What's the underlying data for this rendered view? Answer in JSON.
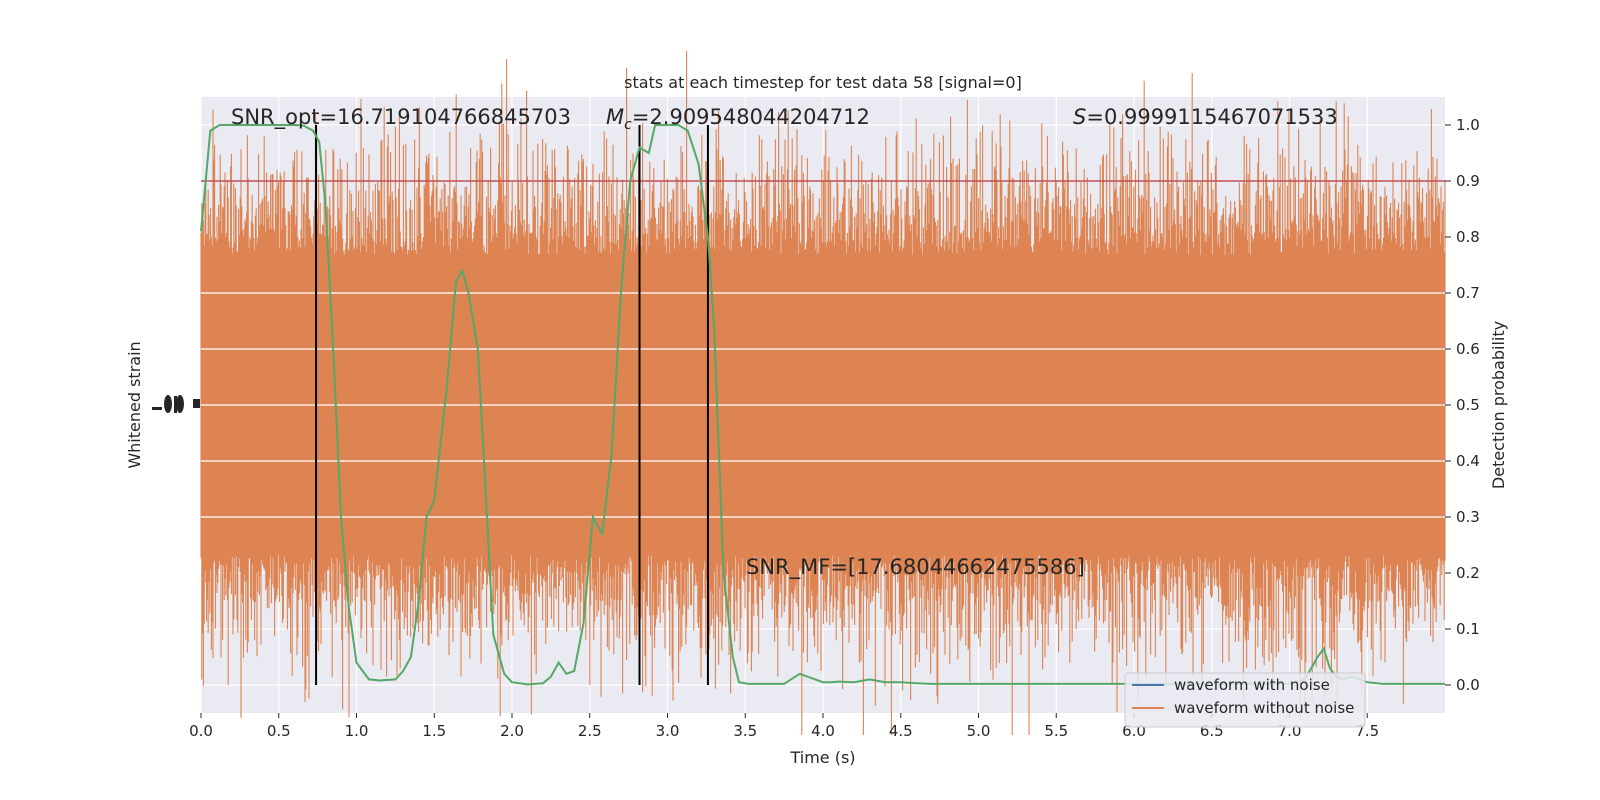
{
  "chart_data": {
    "type": "line",
    "title": "stats at each timestep for test data 58 [signal=0]",
    "xlabel": "Time (s)",
    "ylabel_left": "Whitened strain",
    "ylabel_right": "Detection probability",
    "xlim": [
      0,
      8
    ],
    "ylim_right": [
      -0.05,
      1.05
    ],
    "x_ticks": [
      "0.0",
      "0.5",
      "1.0",
      "1.5",
      "2.0",
      "2.5",
      "3.0",
      "3.5",
      "4.0",
      "4.5",
      "5.0",
      "5.5",
      "6.0",
      "6.5",
      "7.0",
      "7.5"
    ],
    "y_right_ticks": [
      "0.0",
      "0.1",
      "0.2",
      "0.3",
      "0.4",
      "0.5",
      "0.6",
      "0.7",
      "0.8",
      "0.9",
      "1.0"
    ],
    "grid": true,
    "legend_placement": "lower-right",
    "annotations": {
      "snr_opt": "SNR_opt=16.719104766845703",
      "mc_symbol": "M",
      "mc_sub": "c",
      "mc_value": "=2.909548044204712",
      "s_symbol": "S",
      "s_value": "=0.9999115467071533",
      "snr_mf": "SNR_MF=[17.68044662475586]"
    },
    "threshold": 0.9,
    "vertical_lines_x": [
      0.74,
      2.82,
      3.26
    ],
    "series": [
      {
        "name": "waveform with noise",
        "color": "#4c72b0"
      },
      {
        "name": "waveform without noise",
        "color": "#dd8452"
      }
    ],
    "colors": {
      "noise_fill": "#dd8452",
      "probability": "#55a868",
      "threshold": "#c44e52",
      "vlines": "#000000",
      "plot_bg": "#eaeaf2",
      "grid": "#ffffff"
    },
    "probability_curve": {
      "x": [
        0.0,
        0.03,
        0.06,
        0.12,
        0.2,
        0.3,
        0.4,
        0.5,
        0.6,
        0.66,
        0.72,
        0.76,
        0.8,
        0.85,
        0.9,
        0.95,
        1.0,
        1.08,
        1.15,
        1.25,
        1.3,
        1.35,
        1.4,
        1.45,
        1.5,
        1.58,
        1.64,
        1.68,
        1.72,
        1.78,
        1.82,
        1.88,
        1.95,
        2.0,
        2.1,
        2.2,
        2.25,
        2.3,
        2.35,
        2.4,
        2.46,
        2.52,
        2.58,
        2.64,
        2.7,
        2.76,
        2.82,
        2.88,
        2.92,
        2.97,
        3.02,
        3.07,
        3.13,
        3.2,
        3.26,
        3.3,
        3.36,
        3.42,
        3.46,
        3.52,
        3.6,
        3.75,
        3.85,
        3.95,
        4.0,
        4.05,
        4.1,
        4.2,
        4.3,
        4.4,
        4.5,
        4.6,
        4.7,
        4.8,
        5.0,
        5.2,
        5.4,
        5.6,
        5.8,
        6.0,
        6.2,
        6.4,
        6.6,
        6.8,
        7.0,
        7.1,
        7.18,
        7.22,
        7.26,
        7.3,
        7.34,
        7.4,
        7.5,
        7.6,
        7.8,
        8.0
      ],
      "y": [
        0.81,
        0.9,
        0.99,
        1.0,
        1.0,
        1.0,
        1.0,
        1.0,
        1.0,
        0.999,
        0.99,
        0.97,
        0.86,
        0.6,
        0.3,
        0.14,
        0.04,
        0.01,
        0.008,
        0.01,
        0.025,
        0.05,
        0.15,
        0.3,
        0.33,
        0.53,
        0.72,
        0.74,
        0.7,
        0.6,
        0.4,
        0.09,
        0.02,
        0.005,
        0.001,
        0.003,
        0.015,
        0.04,
        0.02,
        0.025,
        0.11,
        0.3,
        0.27,
        0.41,
        0.7,
        0.9,
        0.96,
        0.95,
        1.0,
        1.0,
        1.0,
        1.0,
        0.99,
        0.93,
        0.8,
        0.64,
        0.2,
        0.05,
        0.005,
        0.002,
        0.002,
        0.002,
        0.02,
        0.01,
        0.005,
        0.005,
        0.006,
        0.005,
        0.01,
        0.005,
        0.005,
        0.003,
        0.002,
        0.002,
        0.002,
        0.002,
        0.002,
        0.002,
        0.002,
        0.002,
        0.002,
        0.002,
        0.002,
        0.002,
        0.002,
        0.01,
        0.05,
        0.065,
        0.03,
        0.015,
        0.01,
        0.015,
        0.005,
        0.002,
        0.002,
        0.002
      ]
    }
  }
}
